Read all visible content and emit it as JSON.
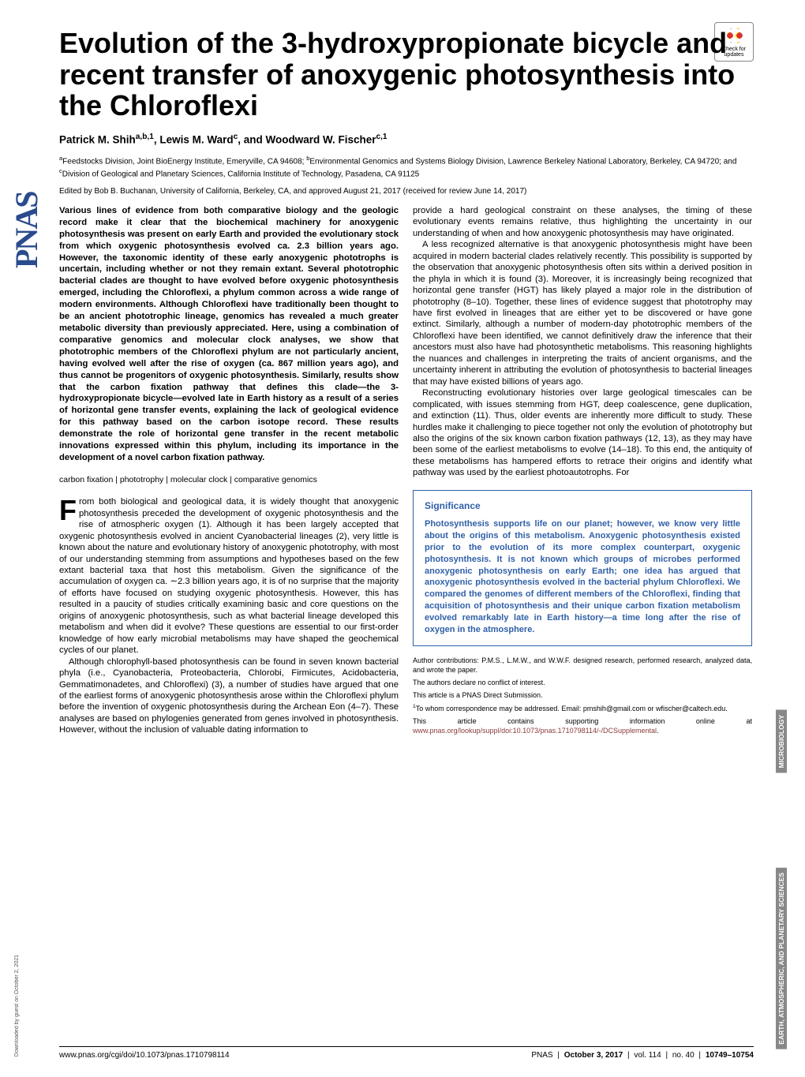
{
  "journal_logo": "PNAS",
  "check_updates": "Check for updates",
  "title": "Evolution of the 3-hydroxypropionate bicycle and recent transfer of anoxygenic photosynthesis into the Chloroflexi",
  "authors_html": "Patrick M. Shih<sup>a,b,1</sup>, Lewis M. Ward<sup>c</sup>, and Woodward W. Fischer<sup>c,1</sup>",
  "affiliations_html": "<sup>a</sup>Feedstocks Division, Joint BioEnergy Institute, Emeryville, CA 94608; <sup>b</sup>Environmental Genomics and Systems Biology Division, Lawrence Berkeley National Laboratory, Berkeley, CA 94720; and <sup>c</sup>Division of Geological and Planetary Sciences, California Institute of Technology, Pasadena, CA 91125",
  "edited": "Edited by Bob B. Buchanan, University of California, Berkeley, CA, and approved August 21, 2017 (received for review June 14, 2017)",
  "abstract": "Various lines of evidence from both comparative biology and the geologic record make it clear that the biochemical machinery for anoxygenic photosynthesis was present on early Earth and provided the evolutionary stock from which oxygenic photosynthesis evolved ca. 2.3 billion years ago. However, the taxonomic identity of these early anoxygenic phototrophs is uncertain, including whether or not they remain extant. Several phototrophic bacterial clades are thought to have evolved before oxygenic photosynthesis emerged, including the Chloroflexi, a phylum common across a wide range of modern environments. Although Chloroflexi have traditionally been thought to be an ancient phototrophic lineage, genomics has revealed a much greater metabolic diversity than previously appreciated. Here, using a combination of comparative genomics and molecular clock analyses, we show that phototrophic members of the Chloroflexi phylum are not particularly ancient, having evolved well after the rise of oxygen (ca. 867 million years ago), and thus cannot be progenitors of oxygenic photosynthesis. Similarly, results show that the carbon fixation pathway that defines this clade—the 3-hydroxypropionate bicycle—evolved late in Earth history as a result of a series of horizontal gene transfer events, explaining the lack of geological evidence for this pathway based on the carbon isotope record. These results demonstrate the role of horizontal gene transfer in the recent metabolic innovations expressed within this phylum, including its importance in the development of a novel carbon fixation pathway.",
  "keywords": "carbon fixation | phototrophy | molecular clock | comparative genomics",
  "body_left": [
    "rom both biological and geological data, it is widely thought that anoxygenic photosynthesis preceded the development of oxygenic photosynthesis and the rise of atmospheric oxygen (1). Although it has been largely accepted that oxygenic photosynthesis evolved in ancient Cyanobacterial lineages (2), very little is known about the nature and evolutionary history of anoxygenic phototrophy, with most of our understanding stemming from assumptions and hypotheses based on the few extant bacterial taxa that host this metabolism. Given the significance of the accumulation of oxygen ca. ∼2.3 billion years ago, it is of no surprise that the majority of efforts have focused on studying oxygenic photosynthesis. However, this has resulted in a paucity of studies critically examining basic and core questions on the origins of anoxygenic photosynthesis, such as what bacterial lineage developed this metabolism and when did it evolve? These questions are essential to our first-order knowledge of how early microbial metabolisms may have shaped the geochemical cycles of our planet.",
    "Although chlorophyll-based photosynthesis can be found in seven known bacterial phyla (i.e., Cyanobacteria, Proteobacteria, Chlorobi, Firmicutes, Acidobacteria, Gemmatimonadetes, and Chloroflexi) (3), a number of studies have argued that one of the earliest forms of anoxygenic photosynthesis arose within the Chloroflexi phylum before the invention of oxygenic photosynthesis during the Archean Eon (4–7). These analyses are based on phylogenies generated from genes involved in photosynthesis. However, without the inclusion of valuable dating information to"
  ],
  "body_right": [
    "provide a hard geological constraint on these analyses, the timing of these evolutionary events remains relative, thus highlighting the uncertainty in our understanding of when and how anoxygenic photosynthesis may have originated.",
    "A less recognized alternative is that anoxygenic photosynthesis might have been acquired in modern bacterial clades relatively recently. This possibility is supported by the observation that anoxygenic photosynthesis often sits within a derived position in the phyla in which it is found (3). Moreover, it is increasingly being recognized that horizontal gene transfer (HGT) has likely played a major role in the distribution of phototrophy (8–10). Together, these lines of evidence suggest that phototrophy may have first evolved in lineages that are either yet to be discovered or have gone extinct. Similarly, although a number of modern-day phototrophic members of the Chloroflexi have been identified, we cannot definitively draw the inference that their ancestors must also have had photosynthetic metabolisms. This reasoning highlights the nuances and challenges in interpreting the traits of ancient organisms, and the uncertainty inherent in attributing the evolution of photosynthesis to bacterial lineages that may have existed billions of years ago.",
    "Reconstructing evolutionary histories over large geological timescales can be complicated, with issues stemming from HGT, deep coalescence, gene duplication, and extinction (11). Thus, older events are inherently more difficult to study. These hurdles make it challenging to piece together not only the evolution of phototrophy but also the origins of the six known carbon fixation pathways (12, 13), as they may have been some of the earliest metabolisms to evolve (14–18). To this end, the antiquity of these metabolisms has hampered efforts to retrace their origins and identify what pathway was used by the earliest photoautotrophs. For"
  ],
  "significance": {
    "title": "Significance",
    "body": "Photosynthesis supports life on our planet; however, we know very little about the origins of this metabolism. Anoxygenic photosynthesis existed prior to the evolution of its more complex counterpart, oxygenic photosynthesis. It is not known which groups of microbes performed anoxygenic photosynthesis on early Earth; one idea has argued that anoxygenic photosynthesis evolved in the bacterial phylum Chloroflexi. We compared the genomes of different members of the Chloroflexi, finding that acquisition of photosynthesis and their unique carbon fixation metabolism evolved remarkably late in Earth history—a time long after the rise of oxygen in the atmosphere."
  },
  "footnotes": {
    "contrib": "Author contributions: P.M.S., L.M.W., and W.W.F. designed research, performed research, analyzed data, and wrote the paper.",
    "conflict": "The authors declare no conflict of interest.",
    "direct": "This article is a PNAS Direct Submission.",
    "corr_html": "<sup>1</sup>To whom correspondence may be addressed. Email: pmshih@gmail.com or wfischer@caltech.edu.",
    "si_html": "This article contains supporting information online at <span class='link'>www.pnas.org/lookup/suppl/doi:10.1073/pnas.1710798114/-/DCSupplemental</span>."
  },
  "side_labels": [
    "MICROBIOLOGY",
    "EARTH, ATMOSPHERIC, AND PLANETARY SCIENCES"
  ],
  "footer": {
    "doi": "www.pnas.org/cgi/doi/10.1073/pnas.1710798114",
    "citation_html": "PNAS <span class='pipe'>|</span> <b>October 3, 2017</b> <span class='pipe'>|</span> vol. 114 <span class='pipe'>|</span> no. 40 <span class='pipe'>|</span> <b>10749–10754</b>"
  },
  "download_note": "Downloaded by guest on October 2, 2021",
  "colors": {
    "blue": "#3060a8",
    "link": "#8b3a3a"
  }
}
